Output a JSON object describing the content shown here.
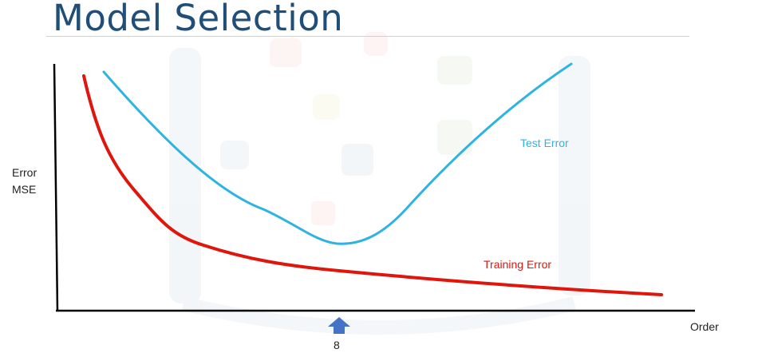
{
  "title": "Model Selection",
  "chart_data": {
    "type": "line",
    "xlabel": "Order",
    "ylabel": "Error MSE",
    "ylabel_lines": [
      "Error",
      "MSE"
    ],
    "grid": false,
    "x_ticks_shown": false,
    "y_ticks_shown": false,
    "marker": {
      "label": "8",
      "color": "#4472c4",
      "shape": "up-arrow"
    },
    "series": [
      {
        "name": "Test Error",
        "color": "#2eb4e0",
        "shape": "u-shaped curve, high at low order, minimum near the marked order, high again at high order"
      },
      {
        "name": "Training Error",
        "color": "#e0150c",
        "shape": "monotonically decreasing curve, steep at low order, flattening out at high order"
      }
    ]
  }
}
